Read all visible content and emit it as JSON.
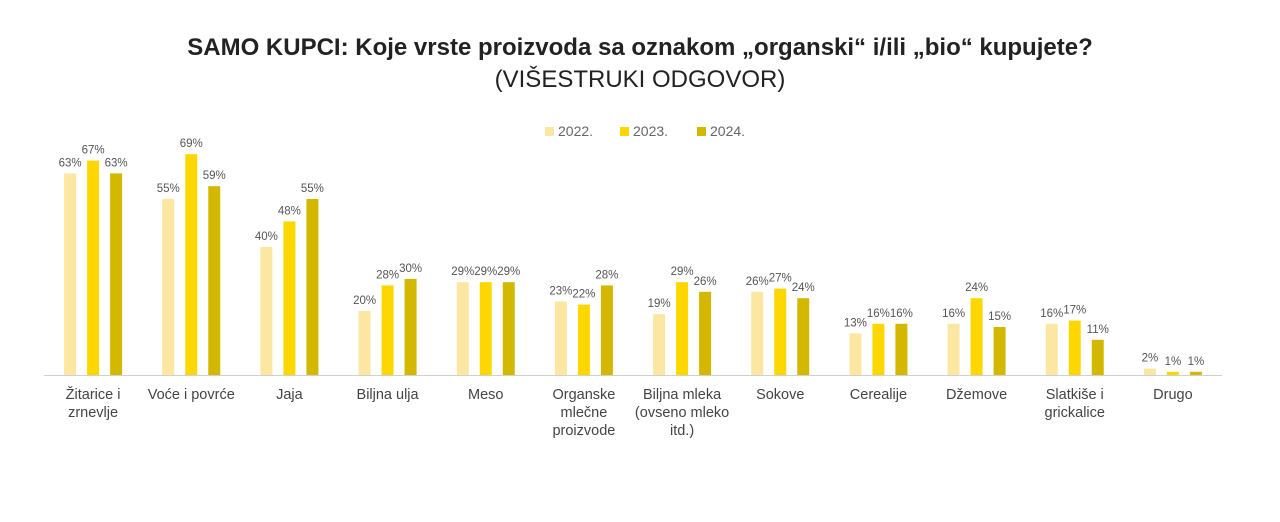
{
  "chart_data": {
    "type": "bar",
    "title": "SAMO KUPCI: Koje vrste proizvoda sa oznakom „organski“ i/ili „bio“ kupujete?",
    "subtitle": "(VIŠESTRUKI ODGOVOR)",
    "xlabel": "",
    "ylabel": "",
    "ylim": [
      0,
      75
    ],
    "grid": false,
    "legend_position": "top-center",
    "value_suffix": "%",
    "categories": [
      "Žitarice i zrnevlje",
      "Voće i povrće",
      "Jaja",
      "Biljna ulja",
      "Meso",
      "Organske mlečne proizvode",
      "Biljna mleka (ovseno mleko itd.)",
      "Sokove",
      "Cerealije",
      "Džemove",
      "Slatkiše i grickalice",
      "Drugo"
    ],
    "series": [
      {
        "name": "2022.",
        "color": "#FBE7A1",
        "values": [
          63,
          55,
          40,
          20,
          29,
          23,
          19,
          26,
          13,
          16,
          16,
          2
        ]
      },
      {
        "name": "2023.",
        "color": "#FFD700",
        "values": [
          67,
          69,
          48,
          28,
          29,
          22,
          29,
          27,
          16,
          24,
          17,
          1
        ]
      },
      {
        "name": "2024.",
        "color": "#D4B800",
        "values": [
          63,
          59,
          55,
          30,
          29,
          28,
          26,
          24,
          16,
          15,
          11,
          1
        ]
      }
    ]
  }
}
